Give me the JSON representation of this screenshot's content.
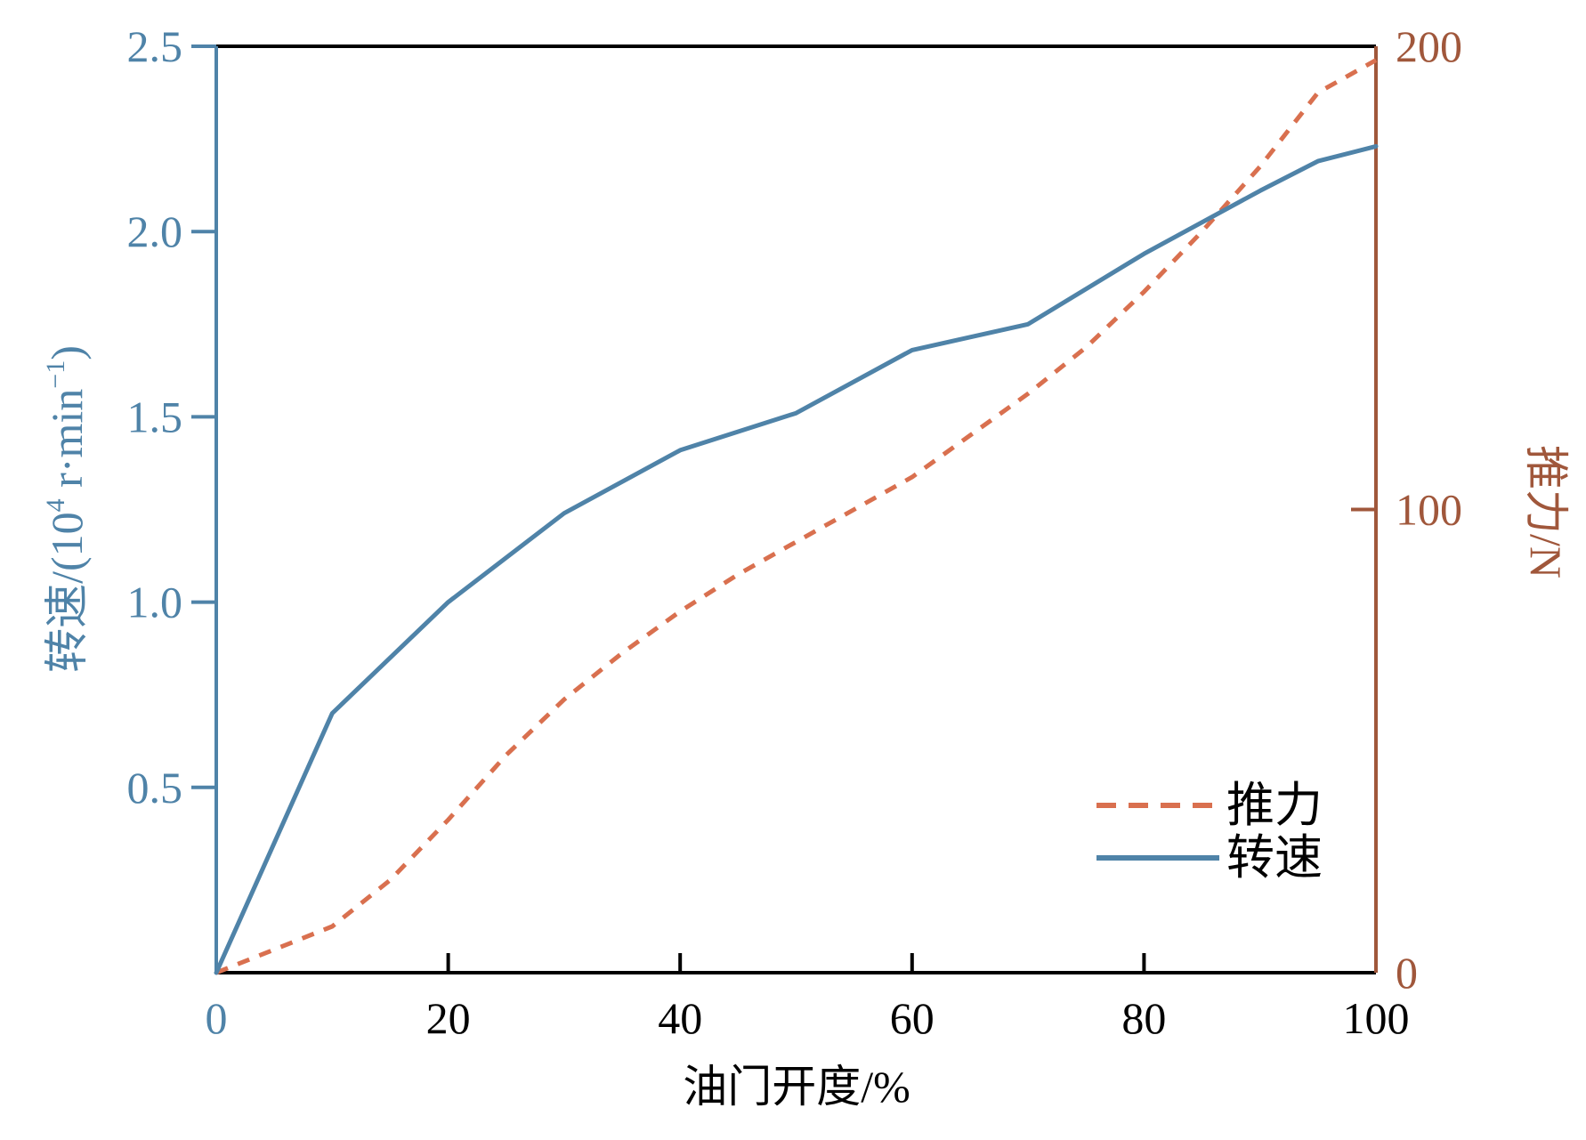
{
  "chart_data": {
    "type": "line",
    "title": "",
    "xlabel": "油门开度/%",
    "ylabel_left_parts": {
      "prefix": "转速/(10",
      "sup": "4",
      "middle": " r·min",
      "sup2": "−1",
      "suffix": ")"
    },
    "ylabel_right": "推力/N",
    "xlim": [
      0,
      100
    ],
    "ylim_left": [
      0,
      2.5
    ],
    "ylim_right": [
      0,
      200
    ],
    "x_ticks": [
      0,
      20,
      40,
      60,
      80,
      100
    ],
    "x_tick_labels": [
      "0",
      "20",
      "40",
      "60",
      "80",
      "100"
    ],
    "y_left_ticks": [
      0.5,
      1.0,
      1.5,
      2.0,
      2.5
    ],
    "y_left_tick_labels": [
      "0.5",
      "1.0",
      "1.5",
      "2.0",
      "2.5"
    ],
    "y_right_ticks": [
      0,
      100,
      200
    ],
    "y_right_tick_labels": [
      "0",
      "100",
      "200"
    ],
    "legend_position": "lower-right",
    "grid": false,
    "series": [
      {
        "name": "推力",
        "axis": "right",
        "style": "dashed",
        "color": "#D9704F",
        "x": [
          0,
          5,
          10,
          15,
          20,
          25,
          30,
          35,
          40,
          45,
          50,
          55,
          60,
          65,
          70,
          75,
          80,
          85,
          90,
          95,
          100
        ],
        "y": [
          0,
          5,
          10,
          20,
          33,
          47,
          59,
          69,
          78,
          86,
          93,
          100,
          107,
          116,
          125,
          135,
          147,
          160,
          174,
          190,
          197
        ]
      },
      {
        "name": "转速",
        "axis": "left",
        "style": "solid",
        "color": "#4F83A8",
        "x": [
          0,
          10,
          20,
          30,
          40,
          50,
          60,
          70,
          80,
          90,
          95,
          100
        ],
        "y": [
          0,
          0.7,
          1.0,
          1.24,
          1.41,
          1.51,
          1.68,
          1.75,
          1.94,
          2.11,
          2.19,
          2.23
        ]
      }
    ],
    "colors": {
      "left_axis": "#4F83A8",
      "right_axis": "#A0573B",
      "frame": "#000000",
      "text": "#000000"
    }
  }
}
